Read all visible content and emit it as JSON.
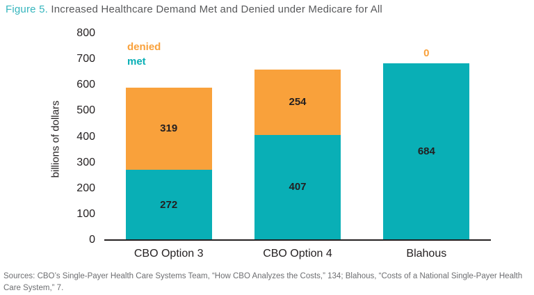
{
  "title": {
    "prefix": "Figure 5.",
    "text": "Increased Healthcare Demand Met and Denied under Medicare for All"
  },
  "chart_data": {
    "type": "bar",
    "stacked": true,
    "categories": [
      "CBO Option 3",
      "CBO Option 4",
      "Blahous"
    ],
    "series": [
      {
        "name": "met",
        "color": "#09afb6",
        "values": [
          272,
          407,
          684
        ]
      },
      {
        "name": "denied",
        "color": "#f9a13b",
        "values": [
          319,
          254,
          0
        ]
      }
    ],
    "title": "Increased Healthcare Demand Met and Denied under Medicare for All",
    "xlabel": "",
    "ylabel": "billions of dollars",
    "ylim": [
      0,
      800
    ],
    "ytick_step": 100,
    "grid": false,
    "legend": [
      {
        "label": "denied",
        "color": "#f9a13b"
      },
      {
        "label": "met",
        "color": "#09afb6"
      }
    ],
    "legend_position": "top-left"
  },
  "colors": {
    "title_accent": "#35b5bd",
    "title_text": "#58595b",
    "axis_text": "#231f20",
    "value_label": "#231f20",
    "sources_text": "#6d6e71"
  },
  "sources": "Sources: CBO’s Single-Payer Health Care Systems Team, “How CBO Analyzes the Costs,” 134; Blahous, “Costs of a National Single-Payer Health Care System,” 7."
}
